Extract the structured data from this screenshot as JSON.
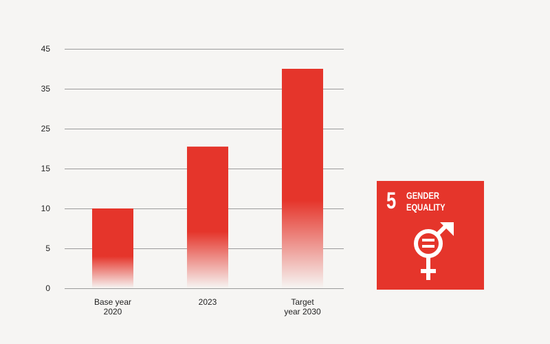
{
  "chart_data": {
    "type": "bar",
    "categories": [
      [
        "Base year",
        "2020"
      ],
      [
        "2023"
      ],
      [
        "Target",
        "year 2030"
      ]
    ],
    "values": [
      10,
      20.5,
      40
    ],
    "y_ticks": [
      "0",
      "5",
      "10",
      "15",
      "25",
      "35",
      "45"
    ],
    "bar_color": "#e5352b",
    "bar_fade_color": "#f6f5f3",
    "grid": true,
    "title": "",
    "xlabel": "",
    "ylabel": ""
  },
  "sdg": {
    "number": "5",
    "title": "GENDER\nEQUALITY",
    "icon": "gender-equality-symbol-icon",
    "color": "#e5352b"
  }
}
